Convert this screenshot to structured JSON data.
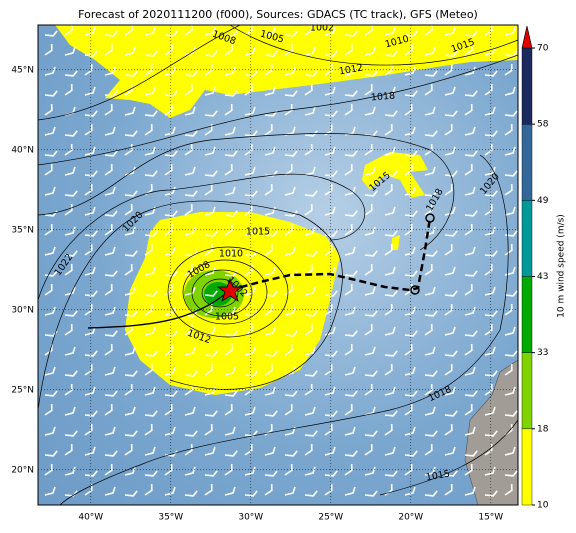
{
  "title": "Forecast of 2020111200 (f000), Sources: GDACS (TC track), GFS (Meteo)",
  "lon_ticks": [
    {
      "value": -40,
      "label": "40°W"
    },
    {
      "value": -35,
      "label": "35°W"
    },
    {
      "value": -30,
      "label": "30°W"
    },
    {
      "value": -25,
      "label": "25°W"
    },
    {
      "value": -20,
      "label": "20°W"
    },
    {
      "value": -15,
      "label": "15°W"
    }
  ],
  "lat_ticks": [
    {
      "value": 20,
      "label": "20°N"
    },
    {
      "value": 25,
      "label": "25°N"
    },
    {
      "value": 30,
      "label": "30°N"
    },
    {
      "value": 35,
      "label": "35°N"
    },
    {
      "value": 40,
      "label": "40°N"
    },
    {
      "value": 45,
      "label": "45°N"
    }
  ],
  "isobar_labels": [
    "1002",
    "1008",
    "1005",
    "1010",
    "1015",
    "1012",
    "1018",
    "1015",
    "1018",
    "1020",
    "1020",
    "1022",
    "1015",
    "1010",
    "1008",
    "1002",
    "1005",
    "1012",
    "1018",
    "1015"
  ],
  "colorbar": {
    "label": "10 m wind speed (m/s)",
    "ticks": [
      10,
      18,
      33,
      43,
      49,
      58,
      70
    ],
    "colors": [
      "#ffff00",
      "#7fd400",
      "#00aa00",
      "#009999",
      "#336699",
      "#1a2a5e"
    ],
    "extend_color": "#e00000"
  }
}
